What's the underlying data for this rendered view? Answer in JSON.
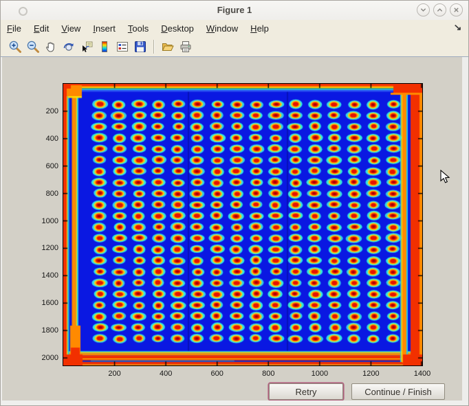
{
  "window": {
    "title": "Figure 1",
    "controls": [
      {
        "name": "minimize",
        "glyph": "chevron-down"
      },
      {
        "name": "maximize",
        "glyph": "chevron-up"
      },
      {
        "name": "close",
        "glyph": "x"
      }
    ]
  },
  "menubar": {
    "items": [
      "File",
      "Edit",
      "View",
      "Insert",
      "Tools",
      "Desktop",
      "Window",
      "Help"
    ],
    "dock_arrow": "↘"
  },
  "toolbar": {
    "items": [
      "zoom-in",
      "zoom-out",
      "pan",
      "rotate-3d",
      "data-cursor",
      "insert-colorbar",
      "insert-legend",
      "save-figure",
      "separator",
      "open-file",
      "print-figure"
    ]
  },
  "dialog": {
    "retry_label": "Retry",
    "continue_label": "Continue / Finish"
  },
  "chart_data": {
    "type": "heatmap",
    "title": "",
    "xlabel": "",
    "ylabel": "",
    "colormap": "jet",
    "description": "False-color (jet colormap) intensity image of a micro-well plate: a 16 x 22 grid of hot spots (red cores, orange/yellow rings, cyan halos) on a deep blue background, with hot red/orange bands along all four plate edges and bright corners.",
    "xlim": [
      0,
      1400
    ],
    "ylim": [
      0,
      2055
    ],
    "y_direction": "reverse",
    "x_ticks": [
      200,
      400,
      600,
      800,
      1000,
      1200,
      1400
    ],
    "y_ticks": [
      200,
      400,
      600,
      800,
      1000,
      1200,
      1400,
      1600,
      1800,
      2000
    ],
    "grid": {
      "cols": 16,
      "rows": 22,
      "first_center_data": [
        142,
        150
      ],
      "spacing_data": [
        76.3,
        81.4
      ]
    },
    "colors": {
      "background": "#0a18e2",
      "halo": "#2dd3c8",
      "ring": "#f2df1e",
      "inner": "#ff9300",
      "core": "#e61300",
      "core_dark": "#a30000",
      "edge_red": "#f23000",
      "edge_orange": "#ff8a00",
      "edge_yellow": "#ffe000",
      "edge_green": "#35c840",
      "edge_cyan": "#25c8e0",
      "streak_blue": "#0a30c8"
    }
  }
}
